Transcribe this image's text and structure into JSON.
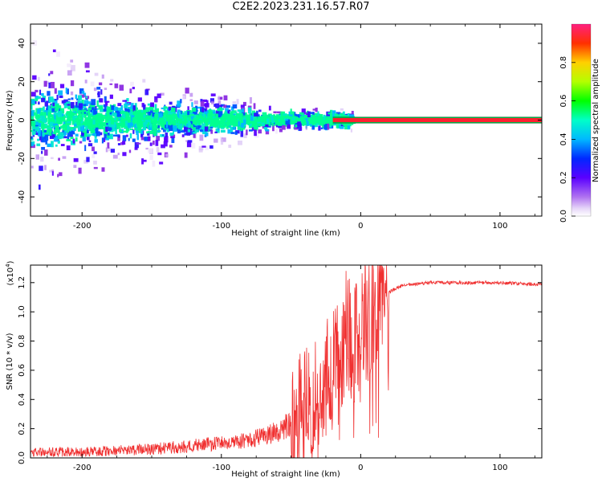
{
  "title": "C2E2.2023.231.16.57.R07",
  "colors": {
    "snr_line": "#f03030",
    "spectrogram_base": "#8a2be2",
    "axis": "#000000"
  },
  "chart_data": [
    {
      "type": "heatmap",
      "name": "spectrogram",
      "xlabel": "Height of straight line (km)",
      "ylabel": "Frequency (Hz)",
      "xlim": [
        -237,
        130
      ],
      "ylim": [
        -50,
        50
      ],
      "xticks": [
        -200,
        -100,
        0,
        100
      ],
      "xtick_labels": [
        "-200",
        "-100",
        "0",
        "100"
      ],
      "yticks": [
        -40,
        -20,
        0,
        20,
        40
      ],
      "ytick_labels": [
        "-40",
        "-20",
        "0",
        "20",
        "40"
      ],
      "colorbar": {
        "label": "Normalized spectral amplitude",
        "range": [
          0,
          1
        ],
        "ticks": [
          0.0,
          0.2,
          0.4,
          0.6,
          0.8
        ],
        "tick_labels": [
          "0.0",
          "0.2",
          "0.4",
          "0.6",
          "0.8"
        ]
      },
      "features": {
        "noise_region_km": [
          -237,
          -20
        ],
        "tone_start_km": -20,
        "tone_frequency_hz": 0,
        "tone_amplitude": 1.0
      }
    },
    {
      "type": "line",
      "name": "snr",
      "xlabel": "Height of straight line (km)",
      "ylabel": "SNR (10 * v/v)",
      "exponent_label": "(x10",
      "exponent_value": "4",
      "xlim": [
        -237,
        130
      ],
      "ylim": [
        0,
        1.32
      ],
      "xticks": [
        -200,
        -100,
        0,
        100
      ],
      "xtick_labels": [
        "-200",
        "-100",
        "0",
        "100"
      ],
      "yticks": [
        0.0,
        0.2,
        0.4,
        0.6,
        0.8,
        1.0,
        1.2
      ],
      "ytick_labels": [
        "0.0",
        "0.2",
        "0.4",
        "0.6",
        "0.8",
        "1.0",
        "1.2"
      ],
      "series": [
        {
          "name": "SNR",
          "x": [
            -237,
            -200,
            -150,
            -100,
            -80,
            -60,
            -50,
            -40,
            -30,
            -25,
            -20,
            -15,
            -10,
            -5,
            0,
            5,
            10,
            15,
            20,
            25,
            30,
            40,
            50,
            60,
            80,
            100,
            120,
            130
          ],
          "values": [
            0.04,
            0.04,
            0.06,
            0.1,
            0.12,
            0.18,
            0.24,
            0.32,
            0.4,
            0.5,
            0.55,
            0.7,
            0.85,
            0.75,
            0.8,
            0.95,
            1.05,
            1.1,
            1.13,
            1.16,
            1.18,
            1.19,
            1.2,
            1.2,
            1.2,
            1.2,
            1.19,
            1.19
          ]
        }
      ]
    }
  ]
}
